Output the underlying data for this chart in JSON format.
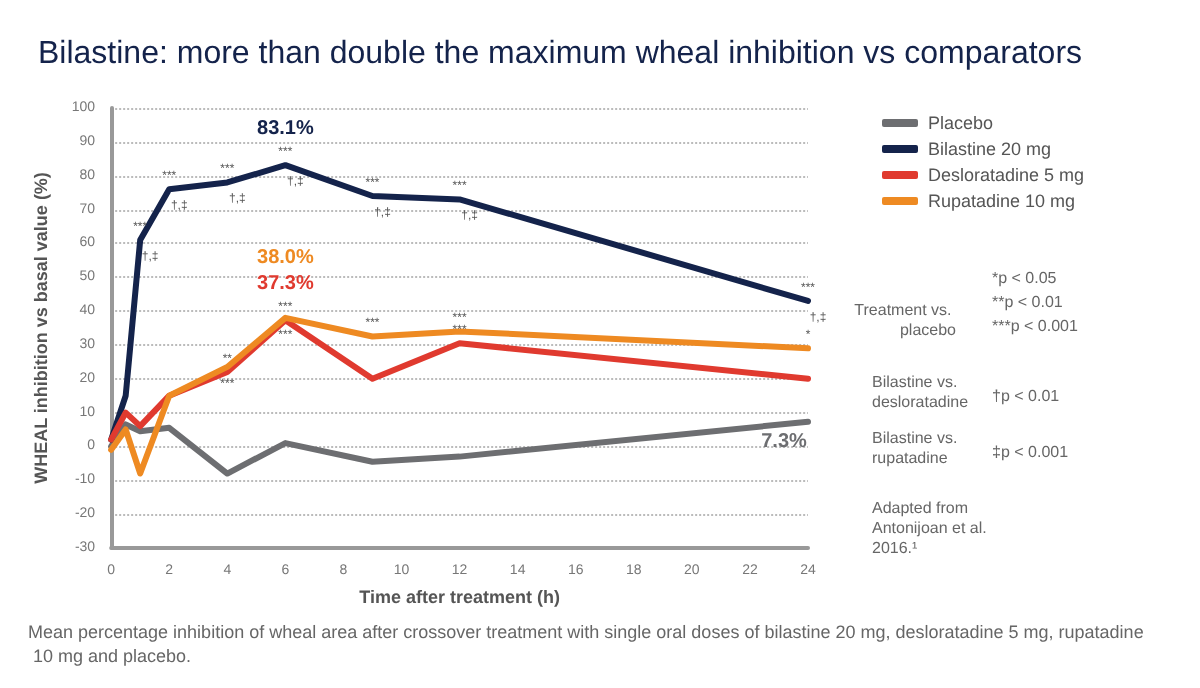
{
  "chart_data": {
    "type": "line",
    "title": "Bilastine: more than double the maximum wheal inhibition vs comparators",
    "xlabel": "Time after treatment (h)",
    "ylabel": "WHEAL inhibition vs basal value (%)",
    "x": [
      0,
      0.5,
      1,
      2,
      4,
      6,
      9,
      12,
      24
    ],
    "series": [
      {
        "name": "Placebo",
        "color": "#6d6e71",
        "values": [
          0,
          6.5,
          4.5,
          5.5,
          -8,
          1,
          -4.5,
          -3,
          7.3
        ]
      },
      {
        "name": "Bilastine 20 mg",
        "color": "#14234b",
        "values": [
          2,
          15,
          61,
          76,
          78,
          83.1,
          74,
          73,
          43
        ]
      },
      {
        "name": "Desloratadine 5 mg",
        "color": "#e03a2f",
        "values": [
          2,
          10,
          6,
          15,
          22,
          37.3,
          20,
          30.5,
          20
        ]
      },
      {
        "name": "Rupatadine 10 mg",
        "color": "#ee8a22",
        "values": [
          -1,
          5,
          -8,
          15,
          23.5,
          38,
          32.5,
          34,
          29
        ]
      }
    ],
    "xlim": [
      0,
      24
    ],
    "xticks": [
      0,
      2,
      4,
      6,
      8,
      10,
      12,
      14,
      16,
      18,
      20,
      22,
      24
    ],
    "ylim": [
      -30,
      100
    ],
    "yticks": [
      -30,
      -20,
      -10,
      0,
      10,
      20,
      30,
      40,
      50,
      60,
      70,
      80,
      90,
      100
    ],
    "grid": "y",
    "legend": "top right",
    "marker": "none",
    "line_style": "solid",
    "annotations": [
      {
        "text": "83.1%",
        "x": 6,
        "y": 83.1
      },
      {
        "text": "38.0%",
        "x": 6,
        "y": 38
      },
      {
        "text": "37.3%",
        "x": 6,
        "y": 37.3
      },
      {
        "text": "7.3%",
        "x": 24,
        "y": 7.3
      },
      {
        "text": "***",
        "x": 1,
        "y": 61
      },
      {
        "text": "***",
        "x": 2,
        "y": 76
      },
      {
        "text": "***",
        "x": 4,
        "y": 78
      },
      {
        "text": "***",
        "x": 6,
        "y": 83.1
      },
      {
        "text": "***",
        "x": 9,
        "y": 74
      },
      {
        "text": "***",
        "x": 12,
        "y": 73
      },
      {
        "text": "***",
        "x": 24,
        "y": 43
      },
      {
        "text": "†,‡",
        "x": 1,
        "y": 61
      },
      {
        "text": "†,‡",
        "x": 2,
        "y": 76
      },
      {
        "text": "†,‡",
        "x": 4,
        "y": 78
      },
      {
        "text": "†,‡",
        "x": 6,
        "y": 83.1
      },
      {
        "text": "†,‡",
        "x": 9,
        "y": 74
      },
      {
        "text": "†,‡",
        "x": 12,
        "y": 73
      },
      {
        "text": "†,‡",
        "x": 24,
        "y": 43
      },
      {
        "text": "***",
        "x": 4,
        "y": 23.5
      },
      {
        "text": "***",
        "x": 6,
        "y": 38
      },
      {
        "text": "***",
        "x": 9,
        "y": 32.5
      },
      {
        "text": "***",
        "x": 12,
        "y": 34
      },
      {
        "text": "*",
        "x": 24,
        "y": 29
      },
      {
        "text": "**",
        "x": 4,
        "y": 22
      },
      {
        "text": "***",
        "x": 6,
        "y": 37.3
      },
      {
        "text": "***",
        "x": 12,
        "y": 30.5
      },
      "Treatment vs. placebo",
      "*p < 0.05",
      "**p < 0.01",
      "***p < 0.001",
      "Bilastine vs. desloratadine",
      "†p < 0.01",
      "Bilastine vs. rupatadine",
      "‡p < 0.001",
      "Adapted from Antonijoan et al. 2016.¹",
      "Mean percentage inhibition of wheal area after crossover treatment with single oral doses of bilastine 20 mg, desloratadine 5 mg, rupatadine 10 mg and placebo."
    ]
  }
}
